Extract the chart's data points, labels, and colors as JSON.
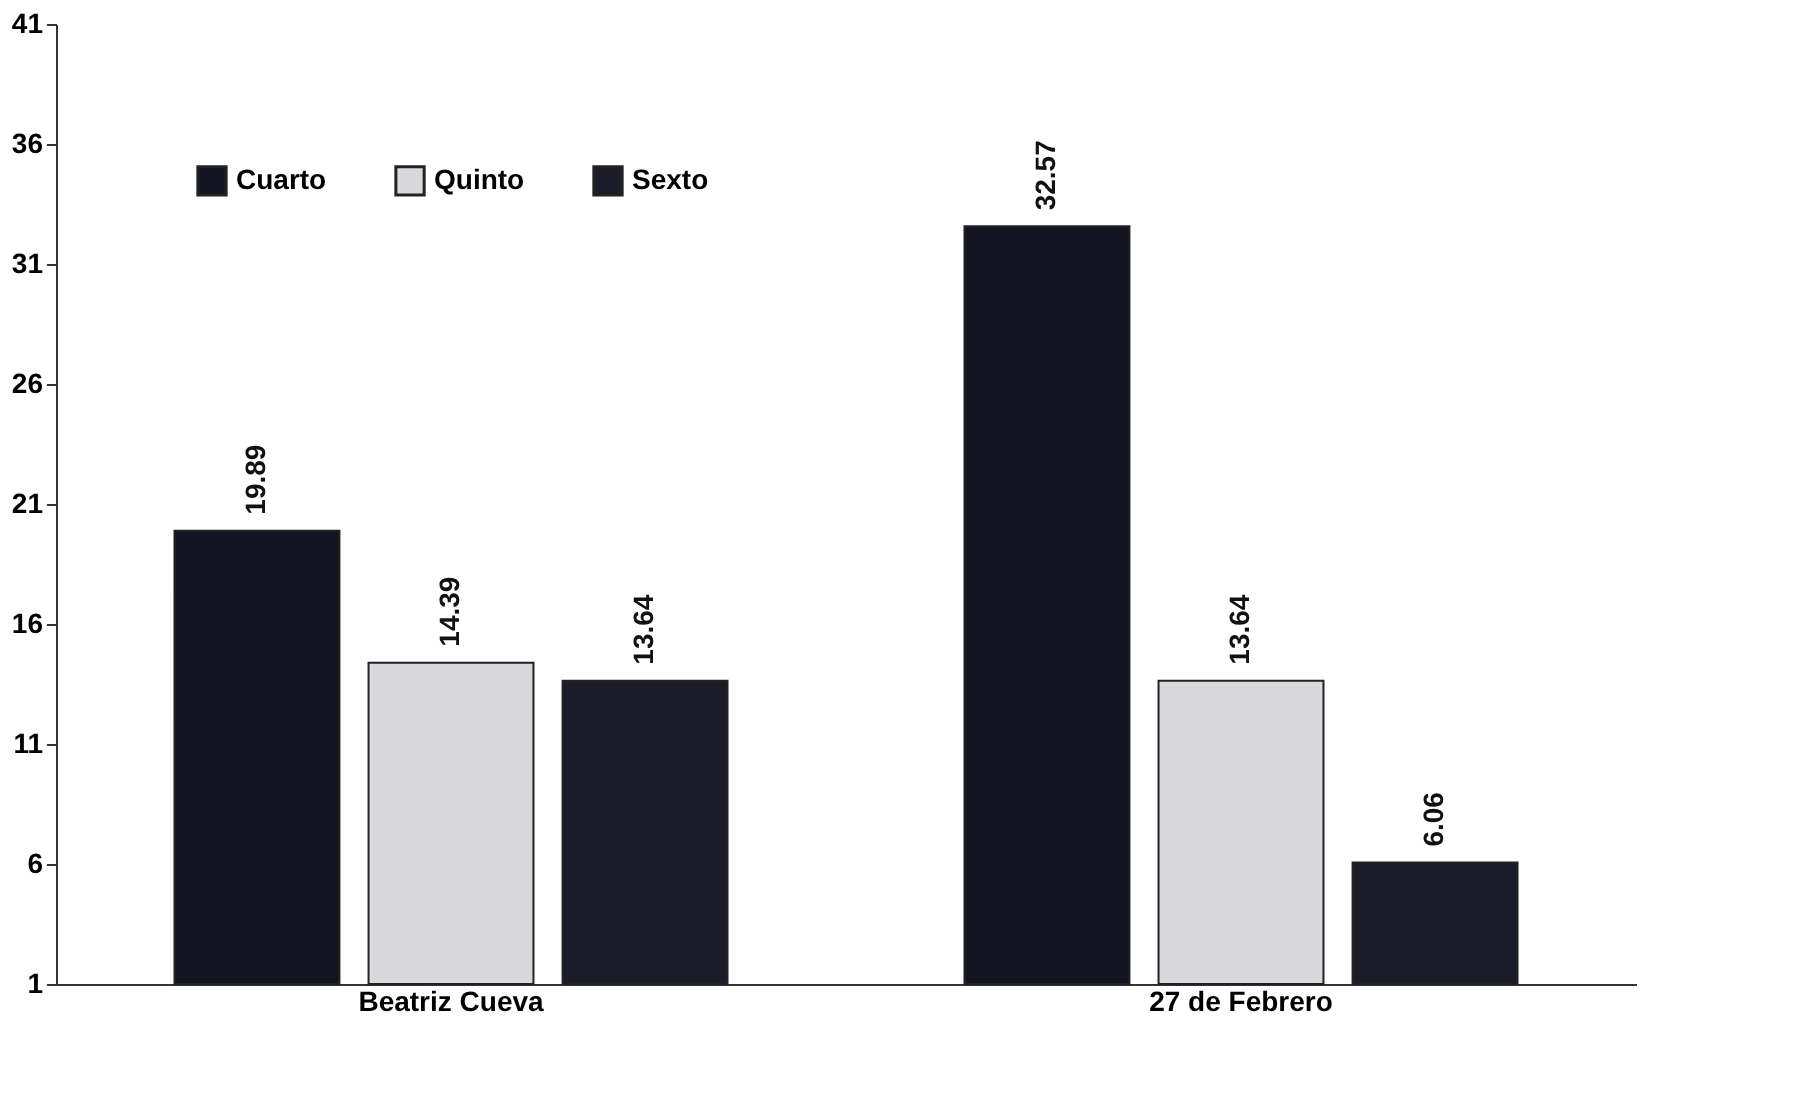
{
  "chart_data": {
    "type": "bar",
    "categories": [
      "Beatriz Cueva",
      "27 de Febrero"
    ],
    "series": [
      {
        "name": "Cuarto",
        "color": "#141420",
        "values": [
          19.89,
          32.57
        ]
      },
      {
        "name": "Quinto",
        "color": "#d9d9dc",
        "values": [
          14.39,
          13.64
        ]
      },
      {
        "name": "Sexto",
        "color": "#1c1c28",
        "values": [
          13.64,
          6.06
        ]
      }
    ],
    "ylim": [
      1,
      41
    ],
    "yticks": [
      1,
      6,
      11,
      16,
      21,
      26,
      31,
      36,
      41
    ],
    "data_labels": true,
    "grid": false,
    "legend": "top left"
  }
}
